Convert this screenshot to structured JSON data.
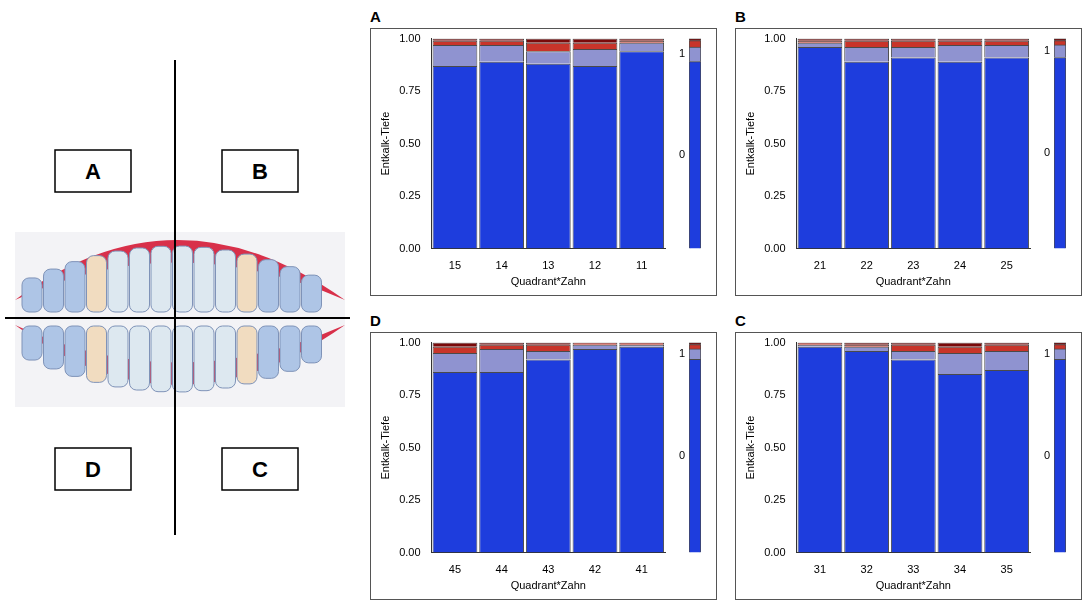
{
  "diagram": {
    "labels": [
      "A",
      "B",
      "D",
      "C"
    ]
  },
  "chart_data": [
    {
      "type": "bar",
      "title": "A",
      "stacked": true,
      "grid": false,
      "y_label": "Entkalk-Tiefe",
      "x_label": "Quadrant*Zahn",
      "categories": [
        "15",
        "14",
        "13",
        "12",
        "11"
      ],
      "ylim": [
        0,
        1
      ],
      "yticks": [
        {
          "value": 0,
          "label": "0.00"
        },
        {
          "value": 0.25,
          "label": "0.25"
        },
        {
          "value": 0.5,
          "label": "0.50"
        },
        {
          "value": 0.75,
          "label": "0.75"
        },
        {
          "value": 1,
          "label": "1.00"
        }
      ],
      "series": [
        {
          "name": "0",
          "color": "#1e3ddd",
          "values": [
            0.87,
            0.89,
            0.88,
            0.87,
            0.94
          ],
          "total": 0.89
        },
        {
          "name": "1",
          "color": "#8f93d0",
          "values": [
            0.1,
            0.08,
            0.06,
            0.08,
            0.04
          ],
          "total": 0.07
        },
        {
          "color": "#c8342a",
          "values": [
            0.02,
            0.02,
            0.04,
            0.03,
            0.01
          ],
          "total": 0.03
        },
        {
          "color": "#7a0a0a",
          "values": [
            0.01,
            0.01,
            0.02,
            0.02,
            0.01
          ],
          "total": 0.01
        }
      ]
    },
    {
      "type": "bar",
      "title": "B",
      "stacked": true,
      "grid": false,
      "y_label": "Entkalk-Tiefe",
      "x_label": "Quadrant*Zahn",
      "categories": [
        "21",
        "22",
        "23",
        "24",
        "25"
      ],
      "ylim": [
        0,
        1
      ],
      "yticks": [
        {
          "value": 0,
          "label": "0.00"
        },
        {
          "value": 0.25,
          "label": "0.25"
        },
        {
          "value": 0.5,
          "label": "0.50"
        },
        {
          "value": 0.75,
          "label": "0.75"
        },
        {
          "value": 1,
          "label": "1.00"
        }
      ],
      "series": [
        {
          "name": "0",
          "color": "#1e3ddd",
          "values": [
            0.96,
            0.89,
            0.91,
            0.89,
            0.91
          ],
          "total": 0.91
        },
        {
          "name": "1",
          "color": "#8f93d0",
          "values": [
            0.02,
            0.07,
            0.05,
            0.08,
            0.06
          ],
          "total": 0.06
        },
        {
          "color": "#c8342a",
          "values": [
            0.01,
            0.03,
            0.03,
            0.02,
            0.02
          ],
          "total": 0.02
        },
        {
          "color": "#7a0a0a",
          "values": [
            0.01,
            0.01,
            0.01,
            0.01,
            0.01
          ],
          "total": 0.01
        }
      ]
    },
    {
      "type": "bar",
      "title": "D",
      "stacked": true,
      "grid": false,
      "y_label": "Entkalk-Tiefe",
      "x_label": "Quadrant*Zahn",
      "categories": [
        "45",
        "44",
        "43",
        "42",
        "41"
      ],
      "ylim": [
        0,
        1
      ],
      "yticks": [
        {
          "value": 0,
          "label": "0.00"
        },
        {
          "value": 0.25,
          "label": "0.25"
        },
        {
          "value": 0.5,
          "label": "0.50"
        },
        {
          "value": 0.75,
          "label": "0.75"
        },
        {
          "value": 1,
          "label": "1.00"
        }
      ],
      "series": [
        {
          "name": "0",
          "color": "#1e3ddd",
          "values": [
            0.86,
            0.86,
            0.92,
            0.97,
            0.98
          ],
          "total": 0.92
        },
        {
          "name": "1",
          "color": "#8f93d0",
          "values": [
            0.09,
            0.11,
            0.04,
            0.02,
            0.01
          ],
          "total": 0.05
        },
        {
          "color": "#c8342a",
          "values": [
            0.03,
            0.02,
            0.03,
            0.01,
            0.01
          ],
          "total": 0.02
        },
        {
          "color": "#7a0a0a",
          "values": [
            0.02,
            0.01,
            0.01,
            0,
            0
          ],
          "total": 0.01
        }
      ]
    },
    {
      "type": "bar",
      "title": "C",
      "stacked": true,
      "grid": false,
      "y_label": "Entkalk-Tiefe",
      "x_label": "Quadrant*Zahn",
      "categories": [
        "31",
        "32",
        "33",
        "34",
        "35"
      ],
      "ylim": [
        0,
        1
      ],
      "yticks": [
        {
          "value": 0,
          "label": "0.00"
        },
        {
          "value": 0.25,
          "label": "0.25"
        },
        {
          "value": 0.5,
          "label": "0.50"
        },
        {
          "value": 0.75,
          "label": "0.75"
        },
        {
          "value": 1,
          "label": "1.00"
        }
      ],
      "series": [
        {
          "name": "0",
          "color": "#1e3ddd",
          "values": [
            0.98,
            0.96,
            0.92,
            0.85,
            0.87
          ],
          "total": 0.92
        },
        {
          "name": "1",
          "color": "#8f93d0",
          "values": [
            0.01,
            0.02,
            0.04,
            0.1,
            0.09
          ],
          "total": 0.05
        },
        {
          "color": "#c8342a",
          "values": [
            0.01,
            0.01,
            0.03,
            0.03,
            0.03
          ],
          "total": 0.02
        },
        {
          "color": "#7a0a0a",
          "values": [
            0,
            0.01,
            0.01,
            0.02,
            0.01
          ],
          "total": 0.01
        }
      ]
    }
  ]
}
